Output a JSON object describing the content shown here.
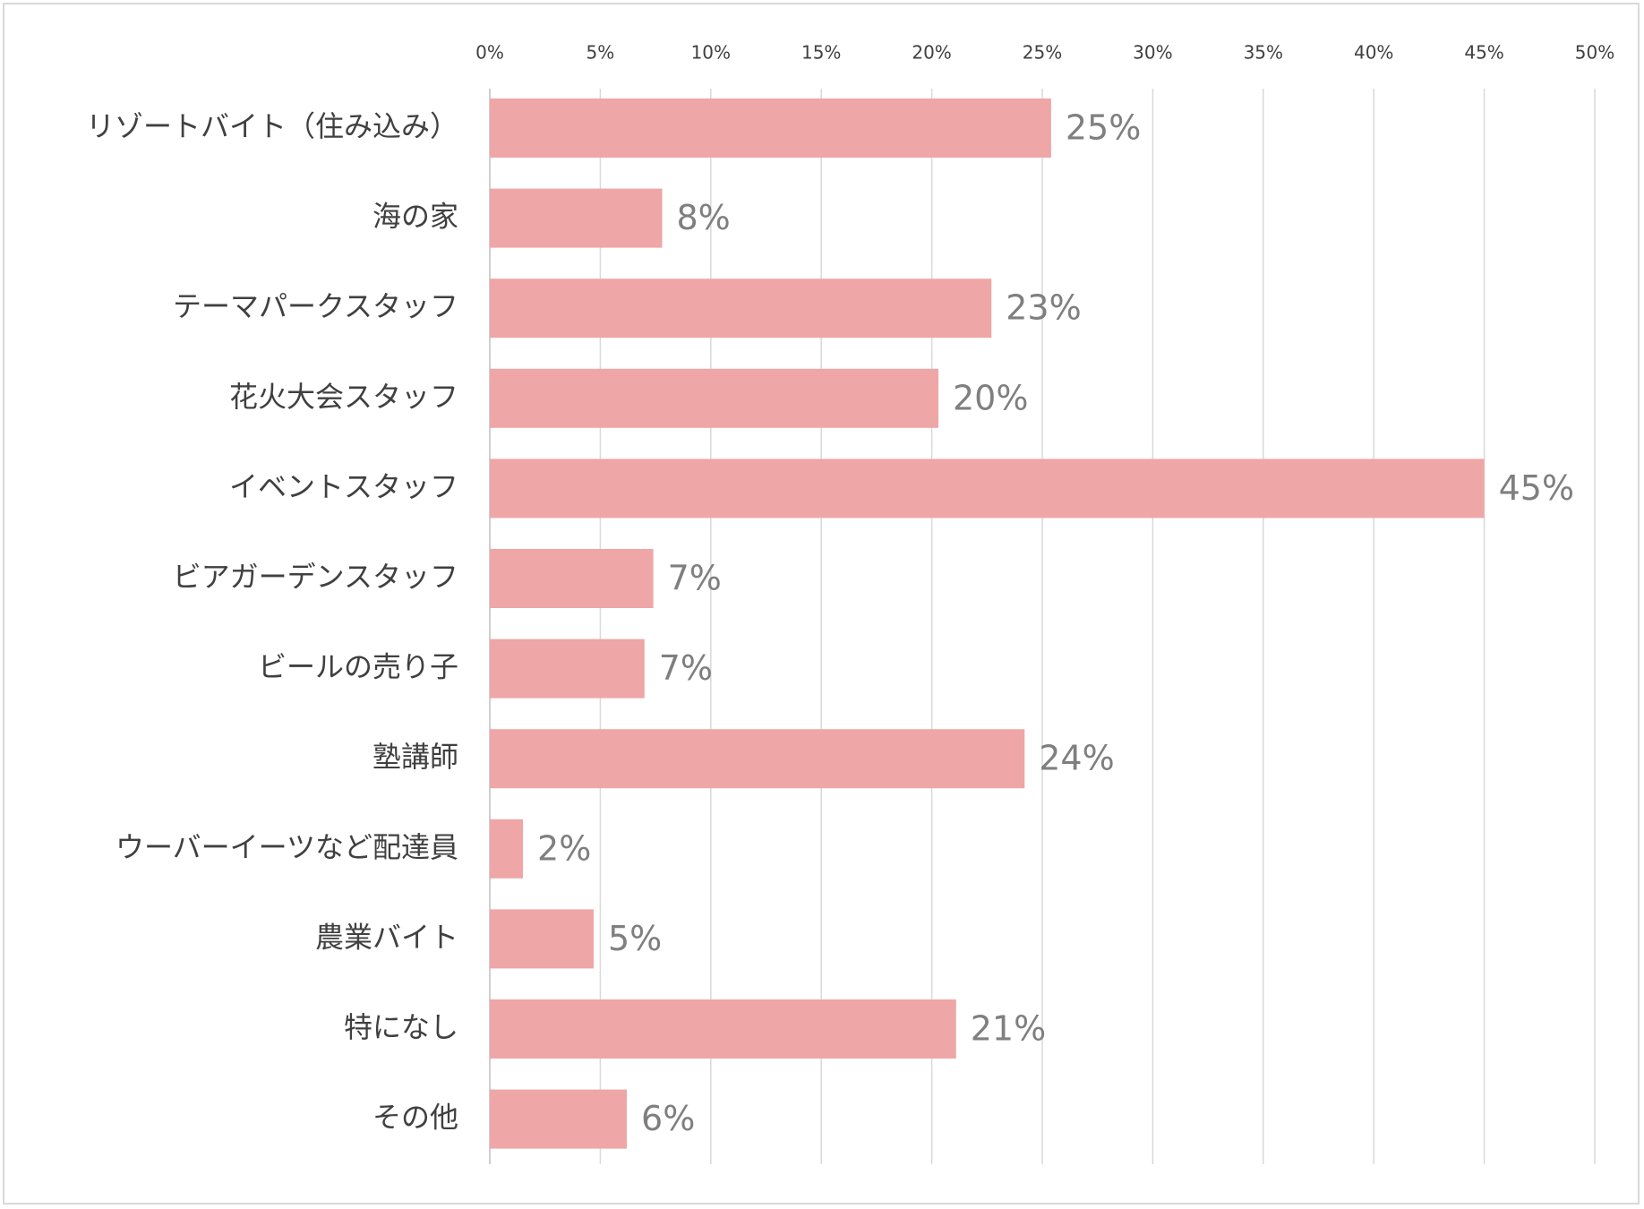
{
  "chart_data": {
    "type": "bar",
    "orientation": "horizontal",
    "title": "",
    "xlabel": "",
    "ylabel": "",
    "xlim": [
      0,
      50
    ],
    "tick_step": 5,
    "grid": true,
    "categories": [
      "リゾートバイト（住み込み）",
      "海の家",
      "テーマパークスタッフ",
      "花火大会スタッフ",
      "イベントスタッフ",
      "ビアガーデンスタッフ",
      "ビールの売り子",
      "塾講師",
      "ウーバーイーツなど配達員",
      "農業バイト",
      "特になし",
      "その他"
    ],
    "values": [
      25.4,
      7.8,
      22.7,
      20.3,
      45.0,
      7.4,
      7.0,
      24.2,
      1.5,
      4.7,
      21.1,
      6.2
    ],
    "data_labels": [
      "25%",
      "8%",
      "23%",
      "20%",
      "45%",
      "7%",
      "7%",
      "24%",
      "2%",
      "5%",
      "21%",
      "6%"
    ],
    "tick_labels": [
      "0%",
      "5%",
      "10%",
      "15%",
      "20%",
      "25%",
      "30%",
      "35%",
      "40%",
      "45%",
      "50%"
    ],
    "bar_color": "#eea6a6",
    "grid_color": "#d9d9d9",
    "label_color": "#404040",
    "data_label_color": "#7f7f7f"
  }
}
